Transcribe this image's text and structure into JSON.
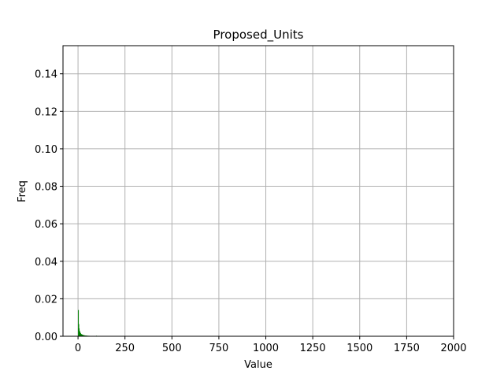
{
  "chart_data": {
    "type": "bar",
    "title": "Proposed_Units",
    "xlabel": "Value",
    "ylabel": "Freq",
    "xlim": [
      -80,
      2000
    ],
    "ylim": [
      0,
      0.155
    ],
    "xticks": [
      0,
      250,
      500,
      750,
      1000,
      1250,
      1500,
      1750,
      2000
    ],
    "yticks": [
      0.0,
      0.02,
      0.04,
      0.06,
      0.08,
      0.1,
      0.12,
      0.14
    ],
    "xtick_labels": [
      "0",
      "250",
      "500",
      "750",
      "1000",
      "1250",
      "1500",
      "1750",
      "2000"
    ],
    "ytick_labels": [
      "0.00",
      "0.02",
      "0.04",
      "0.06",
      "0.08",
      "0.10",
      "0.12",
      "0.14"
    ],
    "grid": true,
    "bar_color": "#008000",
    "bin_width": 2,
    "bins": [
      {
        "x": 0,
        "y": 0.014
      },
      {
        "x": 2,
        "y": 0.0065
      },
      {
        "x": 4,
        "y": 0.0042
      },
      {
        "x": 6,
        "y": 0.003
      },
      {
        "x": 8,
        "y": 0.0024
      },
      {
        "x": 10,
        "y": 0.0019
      },
      {
        "x": 12,
        "y": 0.0016
      },
      {
        "x": 14,
        "y": 0.0013
      },
      {
        "x": 16,
        "y": 0.0011
      },
      {
        "x": 18,
        "y": 0.001
      },
      {
        "x": 20,
        "y": 0.0009
      },
      {
        "x": 22,
        "y": 0.0008
      },
      {
        "x": 24,
        "y": 0.0007
      },
      {
        "x": 26,
        "y": 0.0006
      },
      {
        "x": 28,
        "y": 0.0006
      },
      {
        "x": 30,
        "y": 0.0005
      },
      {
        "x": 34,
        "y": 0.0005
      },
      {
        "x": 38,
        "y": 0.0004
      },
      {
        "x": 42,
        "y": 0.0004
      },
      {
        "x": 46,
        "y": 0.0003
      },
      {
        "x": 50,
        "y": 0.0003
      },
      {
        "x": 56,
        "y": 0.0003
      },
      {
        "x": 62,
        "y": 0.0002
      },
      {
        "x": 70,
        "y": 0.0002
      },
      {
        "x": 80,
        "y": 0.0002
      },
      {
        "x": 96,
        "y": 0.0003
      },
      {
        "x": 112,
        "y": 0.0001
      },
      {
        "x": 136,
        "y": 0.0002
      },
      {
        "x": 160,
        "y": 0.0001
      },
      {
        "x": 194,
        "y": 0.0001
      },
      {
        "x": 450,
        "y": 0.0001
      }
    ]
  }
}
